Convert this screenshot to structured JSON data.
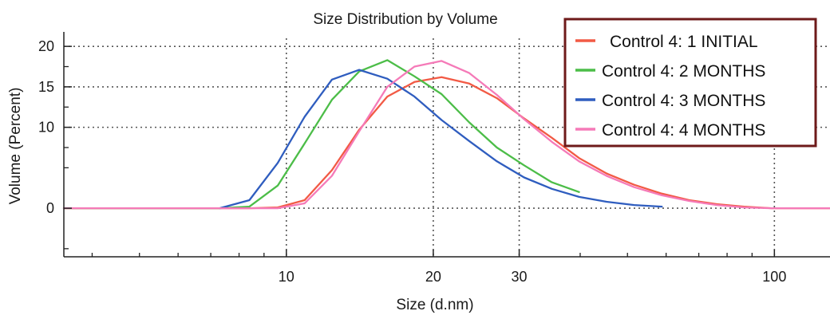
{
  "chart_data": {
    "type": "line",
    "title": "Size Distribution by Volume",
    "xlabel": "Size (d.nm)",
    "ylabel": "Volume (Percent)",
    "x_scale": "log",
    "xlim": [
      3.5,
      130
    ],
    "ylim": [
      -6,
      21
    ],
    "x_ticks": [
      {
        "value": 10,
        "label": "10"
      },
      {
        "value": 20,
        "label": "20"
      },
      {
        "value": 30,
        "label": "30"
      },
      {
        "value": 100,
        "label": "100"
      }
    ],
    "y_ticks": [
      {
        "value": 0,
        "label": "0"
      },
      {
        "value": 10,
        "label": "10"
      },
      {
        "value": 15,
        "label": "15"
      },
      {
        "value": 20,
        "label": "20"
      }
    ],
    "grid": true,
    "legend_position": "top-right",
    "series": [
      {
        "name": "Control 4: 1 INITIAL",
        "color": "#f25a45",
        "x": [
          3.5,
          8.4,
          9.6,
          10.9,
          12.4,
          14.1,
          16.1,
          18.3,
          20.8,
          23.7,
          27,
          30.7,
          35,
          39.8,
          45.3,
          51.6,
          58.8,
          66.9,
          76.2,
          86.7,
          98.7,
          130
        ],
        "y": [
          0,
          0,
          0.1,
          1.0,
          4.7,
          9.7,
          13.8,
          15.6,
          16.2,
          15.4,
          13.6,
          11.1,
          8.7,
          6.2,
          4.3,
          2.9,
          1.8,
          1.0,
          0.5,
          0.2,
          0,
          0
        ]
      },
      {
        "name": "Control 4: 2 MONTHS",
        "color": "#4cbd48",
        "x": [
          3.5,
          7.3,
          8.4,
          9.6,
          10.9,
          12.4,
          14.1,
          16.1,
          18.3,
          20.8,
          23.7,
          27,
          30.7,
          35,
          39.8
        ],
        "y": [
          0,
          0,
          0.2,
          2.8,
          8.0,
          13.4,
          16.9,
          18.3,
          16.3,
          14.1,
          10.6,
          7.5,
          5.3,
          3.2,
          2.0
        ]
      },
      {
        "name": "Control 4: 3 MONTHS",
        "color": "#2f5dbf",
        "x": [
          7.3,
          8.4,
          9.6,
          10.9,
          12.4,
          14.1,
          16.1,
          18.3,
          20.8,
          23.7,
          27,
          30.7,
          35,
          39.8,
          45.3,
          51.6,
          58.8
        ],
        "y": [
          0,
          1.0,
          5.6,
          11.3,
          15.9,
          17.1,
          16.0,
          13.8,
          10.9,
          8.3,
          5.8,
          3.8,
          2.4,
          1.4,
          0.8,
          0.4,
          0.2
        ]
      },
      {
        "name": "Control 4: 4 MONTHS",
        "color": "#f57ab8",
        "x": [
          3.5,
          8.4,
          9.6,
          10.9,
          12.4,
          14.1,
          16.1,
          18.3,
          20.8,
          23.7,
          27,
          30.7,
          35,
          39.8,
          45.3,
          51.6,
          58.8,
          66.9,
          76.2,
          86.7,
          98.7,
          130
        ],
        "y": [
          0,
          0,
          0,
          0.6,
          4.0,
          9.5,
          15.0,
          17.5,
          18.2,
          16.7,
          14.0,
          11.0,
          8.2,
          5.8,
          4.0,
          2.6,
          1.6,
          0.9,
          0.4,
          0.1,
          0,
          0
        ]
      }
    ]
  }
}
